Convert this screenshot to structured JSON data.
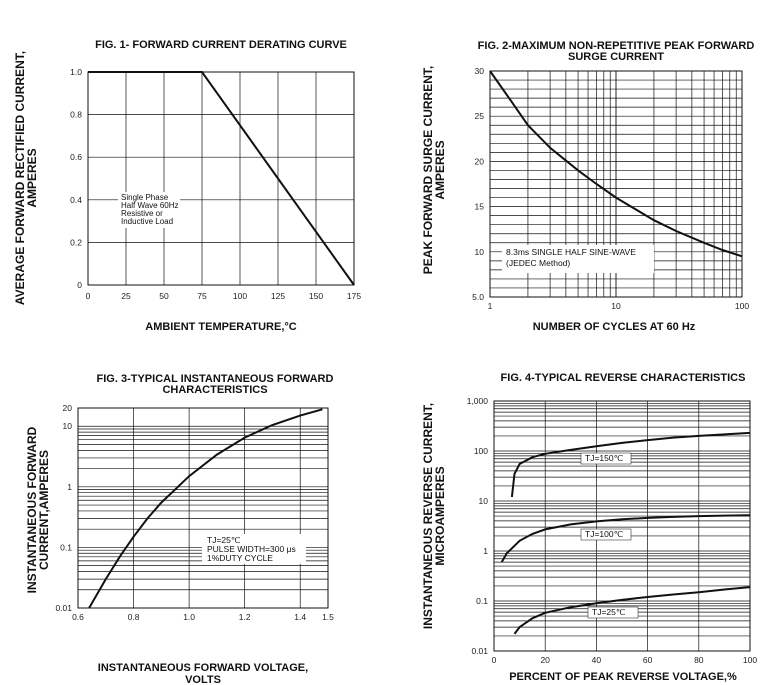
{
  "chart_data": [
    {
      "type": "line",
      "title": "FIG. 1- FORWARD CURRENT DERATING CURVE",
      "xlabel": "AMBIENT TEMPERATURE,°C",
      "ylabel": [
        "AVERAGE FORWARD RECTIFIED CURRENT,",
        "AMPERES"
      ],
      "xlim": [
        0,
        175
      ],
      "ylim": [
        0,
        1.0
      ],
      "xticks": [
        0,
        25,
        50,
        75,
        100,
        125,
        150,
        175
      ],
      "xtick_labels": [
        "0",
        "25",
        "50",
        "75",
        "100",
        "125",
        "150",
        "175"
      ],
      "yticks": [
        0,
        0.2,
        0.4,
        0.6,
        0.8,
        1.0
      ],
      "ytick_labels": [
        "0",
        "0.2",
        "0.4",
        "0.6",
        "0.8",
        "1.0"
      ],
      "grid": true,
      "series": [
        {
          "x": [
            0,
            75,
            175
          ],
          "y": [
            1.0,
            1.0,
            0
          ]
        }
      ],
      "annotation": [
        "Single Phase",
        "Half Wave 60Hz",
        "Resistive or",
        "Inductive Load"
      ]
    },
    {
      "type": "line",
      "title": [
        "FIG. 2-MAXIMUM NON-REPETITIVE PEAK FORWARD",
        "SURGE CURRENT"
      ],
      "xlabel": "NUMBER OF CYCLES AT 60 Hz",
      "ylabel": [
        "PEAK FORWARD SURGE CURRENT,",
        "AMPERES"
      ],
      "xscale": "log",
      "xlim": [
        1,
        100
      ],
      "ylim": [
        5,
        30
      ],
      "xticks": [
        1,
        10,
        100
      ],
      "xtick_labels": [
        "1",
        "10",
        "100"
      ],
      "yticks": [
        5,
        10,
        15,
        20,
        25,
        30
      ],
      "ytick_labels": [
        "5.0",
        "10",
        "15",
        "20",
        "25",
        "30"
      ],
      "grid": true,
      "series": [
        {
          "x": [
            1,
            1.5,
            2,
            3,
            5,
            7,
            10,
            20,
            30,
            50,
            70,
            100
          ],
          "y": [
            30,
            26.5,
            24,
            21.5,
            19,
            17.5,
            16,
            13.5,
            12.3,
            11,
            10.2,
            9.5
          ]
        }
      ],
      "annotation": [
        "8.3ms SINGLE HALF SINE-WAVE",
        "(JEDEC Method)"
      ]
    },
    {
      "type": "line",
      "title": [
        "FIG. 3-TYPICAL INSTANTANEOUS FORWARD",
        "CHARACTERISTICS"
      ],
      "xlabel": [
        "INSTANTANEOUS FORWARD VOLTAGE,",
        "VOLTS"
      ],
      "ylabel": [
        "INSTANTANEOUS FORWARD",
        "CURRENT,AMPERES"
      ],
      "yscale": "log",
      "xlim": [
        0.6,
        1.5
      ],
      "ylim": [
        0.01,
        20
      ],
      "xticks": [
        0.6,
        0.8,
        1.0,
        1.2,
        1.4,
        1.5
      ],
      "xtick_labels": [
        "0.6",
        "0.8",
        "1.0",
        "1.2",
        "1.4",
        "1.5"
      ],
      "yticks": [
        0.01,
        0.1,
        1,
        10,
        20
      ],
      "ytick_labels": [
        "0.01",
        "0.1",
        "1",
        "10",
        "20"
      ],
      "grid": true,
      "series": [
        {
          "x": [
            0.64,
            0.7,
            0.75,
            0.8,
            0.85,
            0.9,
            1.0,
            1.1,
            1.2,
            1.3,
            1.4,
            1.48
          ],
          "y": [
            0.01,
            0.03,
            0.07,
            0.15,
            0.3,
            0.55,
            1.5,
            3.4,
            6.5,
            10.5,
            15,
            19
          ]
        }
      ],
      "annotation": [
        "TJ=25℃",
        "PULSE WIDTH=300 μs",
        "1%DUTY CYCLE"
      ]
    },
    {
      "type": "line",
      "title": "FIG. 4-TYPICAL REVERSE CHARACTERISTICS",
      "xlabel": "PERCENT OF PEAK REVERSE VOLTAGE,%",
      "ylabel": [
        "INSTANTANEOUS REVERSE CURRENT,",
        "MICROAMPERES"
      ],
      "yscale": "log",
      "xlim": [
        0,
        100
      ],
      "ylim": [
        0.01,
        1000
      ],
      "xticks": [
        0,
        20,
        40,
        60,
        80,
        100
      ],
      "xtick_labels": [
        "0",
        "20",
        "40",
        "60",
        "80",
        "100"
      ],
      "yticks": [
        0.01,
        0.1,
        1,
        10,
        100,
        1000
      ],
      "ytick_labels": [
        "0.01",
        "0.1",
        "1",
        "10",
        "100",
        "1,000"
      ],
      "grid": true,
      "series": [
        {
          "name": "TJ=150℃",
          "x": [
            7,
            8,
            10,
            15,
            20,
            30,
            40,
            50,
            60,
            70,
            80,
            90,
            100
          ],
          "y": [
            12,
            35,
            55,
            75,
            88,
            105,
            125,
            145,
            165,
            185,
            200,
            215,
            230
          ]
        },
        {
          "name": "TJ=100℃",
          "x": [
            3,
            5,
            10,
            15,
            20,
            30,
            40,
            50,
            60,
            70,
            80,
            90,
            100
          ],
          "y": [
            0.6,
            0.9,
            1.6,
            2.2,
            2.7,
            3.4,
            3.9,
            4.3,
            4.6,
            4.8,
            5.0,
            5.1,
            5.2
          ]
        },
        {
          "name": "TJ=25℃",
          "x": [
            8,
            10,
            15,
            20,
            30,
            40,
            50,
            60,
            70,
            80,
            90,
            100
          ],
          "y": [
            0.022,
            0.03,
            0.045,
            0.058,
            0.075,
            0.09,
            0.105,
            0.12,
            0.135,
            0.15,
            0.17,
            0.19
          ]
        }
      ]
    }
  ]
}
